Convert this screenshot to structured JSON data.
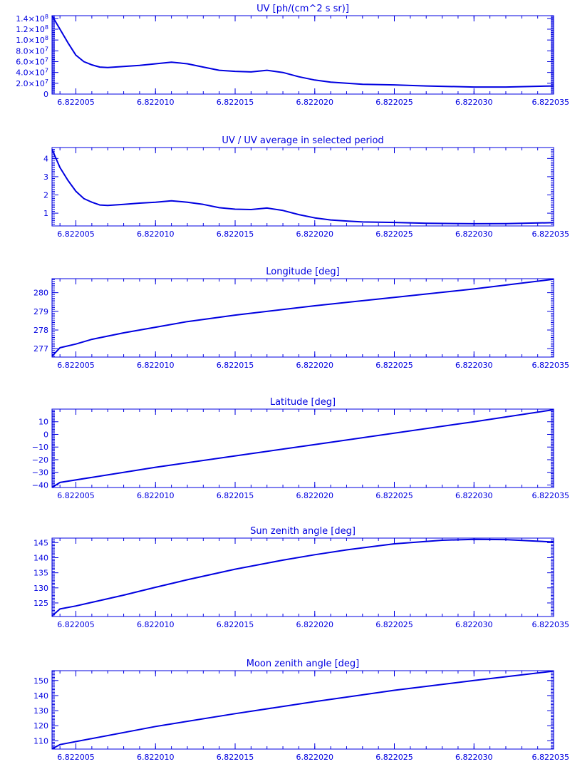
{
  "style": {
    "color": "#0000e0",
    "background": "#ffffff"
  },
  "chart_data": [
    {
      "type": "line",
      "title": "UV [ph/(cm^2 s sr)]",
      "xlim": [
        6.8220035,
        6.822035
      ],
      "ylim": [
        0,
        145000000
      ],
      "x_ticks": [
        "6.822005",
        "6.822010",
        "6.822015",
        "6.822020",
        "6.822025",
        "6.822030",
        "6.822035"
      ],
      "x_tick_values": [
        6.822005,
        6.82201,
        6.822015,
        6.82202,
        6.822025,
        6.82203,
        6.822035
      ],
      "y_ticks": [
        {
          "value": 0,
          "mantissa": "0",
          "exp": ""
        },
        {
          "value": 20000000,
          "mantissa": "2.0×10",
          "exp": "7"
        },
        {
          "value": 40000000,
          "mantissa": "4.0×10",
          "exp": "7"
        },
        {
          "value": 60000000,
          "mantissa": "6.0×10",
          "exp": "7"
        },
        {
          "value": 80000000,
          "mantissa": "8.0×10",
          "exp": "7"
        },
        {
          "value": 100000000,
          "mantissa": "1.0×10",
          "exp": "8"
        },
        {
          "value": 120000000,
          "mantissa": "1.2×10",
          "exp": "8"
        },
        {
          "value": 140000000,
          "mantissa": "1.4×10",
          "exp": "8"
        }
      ],
      "series": [
        {
          "x": [
            6.8220035,
            6.822004,
            6.8220045,
            6.822005,
            6.8220055,
            6.822006,
            6.8220065,
            6.822007,
            6.822008,
            6.822009,
            6.82201,
            6.822011,
            6.822012,
            6.822013,
            6.822014,
            6.822015,
            6.822016,
            6.822017,
            6.822018,
            6.822019,
            6.82202,
            6.822021,
            6.822022,
            6.822023,
            6.822025,
            6.822027,
            6.82203,
            6.822032,
            6.822035
          ],
          "y": [
            145000000,
            120000000,
            95000000,
            72000000,
            60000000,
            54000000,
            50000000,
            49000000,
            51000000,
            53000000,
            56000000,
            59000000,
            56000000,
            50000000,
            44000000,
            42000000,
            41000000,
            44000000,
            40000000,
            32000000,
            26000000,
            22000000,
            20000000,
            18000000,
            17000000,
            15000000,
            13000000,
            13000000,
            15000000
          ]
        }
      ]
    },
    {
      "type": "line",
      "title": "UV / UV average in selected period",
      "xlim": [
        6.8220035,
        6.822035
      ],
      "ylim": [
        0.3,
        4.6
      ],
      "x_ticks": [
        "6.822005",
        "6.822010",
        "6.822015",
        "6.822020",
        "6.822025",
        "6.822030",
        "6.822035"
      ],
      "x_tick_values": [
        6.822005,
        6.82201,
        6.822015,
        6.82202,
        6.822025,
        6.82203,
        6.822035
      ],
      "y_ticks": [
        {
          "value": 1,
          "mantissa": "1",
          "exp": ""
        },
        {
          "value": 2,
          "mantissa": "2",
          "exp": ""
        },
        {
          "value": 3,
          "mantissa": "3",
          "exp": ""
        },
        {
          "value": 4,
          "mantissa": "4",
          "exp": ""
        }
      ],
      "series": [
        {
          "x": [
            6.8220035,
            6.822004,
            6.8220045,
            6.822005,
            6.8220055,
            6.822006,
            6.8220065,
            6.822007,
            6.822008,
            6.822009,
            6.82201,
            6.822011,
            6.822012,
            6.822013,
            6.822014,
            6.822015,
            6.822016,
            6.822017,
            6.822018,
            6.822019,
            6.82202,
            6.822021,
            6.822022,
            6.822023,
            6.822025,
            6.822027,
            6.82203,
            6.822032,
            6.822035
          ],
          "y": [
            4.5,
            3.5,
            2.8,
            2.2,
            1.8,
            1.6,
            1.45,
            1.42,
            1.48,
            1.55,
            1.6,
            1.68,
            1.6,
            1.48,
            1.3,
            1.22,
            1.2,
            1.28,
            1.15,
            0.92,
            0.74,
            0.63,
            0.57,
            0.52,
            0.49,
            0.45,
            0.42,
            0.43,
            0.48
          ]
        }
      ]
    },
    {
      "type": "line",
      "title": "Longitude [deg]",
      "xlim": [
        6.8220035,
        6.822035
      ],
      "ylim": [
        276.55,
        280.75
      ],
      "x_ticks": [
        "6.822005",
        "6.822010",
        "6.822015",
        "6.822020",
        "6.822025",
        "6.822030",
        "6.822035"
      ],
      "x_tick_values": [
        6.822005,
        6.82201,
        6.822015,
        6.82202,
        6.822025,
        6.82203,
        6.822035
      ],
      "y_ticks": [
        {
          "value": 277,
          "mantissa": "277",
          "exp": ""
        },
        {
          "value": 278,
          "mantissa": "278",
          "exp": ""
        },
        {
          "value": 279,
          "mantissa": "279",
          "exp": ""
        },
        {
          "value": 280,
          "mantissa": "280",
          "exp": ""
        }
      ],
      "series": [
        {
          "x": [
            6.8220035,
            6.822004,
            6.822005,
            6.822006,
            6.822008,
            6.82201,
            6.822012,
            6.822015,
            6.82202,
            6.822025,
            6.82203,
            6.822035
          ],
          "y": [
            276.6,
            277.05,
            277.25,
            277.5,
            277.85,
            278.15,
            278.45,
            278.8,
            279.3,
            279.75,
            280.2,
            280.72
          ]
        }
      ]
    },
    {
      "type": "line",
      "title": "Latitude [deg]",
      "xlim": [
        6.8220035,
        6.822035
      ],
      "ylim": [
        -42,
        20
      ],
      "x_ticks": [
        "6.822005",
        "6.822010",
        "6.822015",
        "6.822020",
        "6.822025",
        "6.822030",
        "6.822035"
      ],
      "x_tick_values": [
        6.822005,
        6.82201,
        6.822015,
        6.82202,
        6.822025,
        6.82203,
        6.822035
      ],
      "y_ticks": [
        {
          "value": -40,
          "mantissa": "−40",
          "exp": ""
        },
        {
          "value": -30,
          "mantissa": "−30",
          "exp": ""
        },
        {
          "value": -20,
          "mantissa": "−20",
          "exp": ""
        },
        {
          "value": -10,
          "mantissa": "−10",
          "exp": ""
        },
        {
          "value": 0,
          "mantissa": "0",
          "exp": ""
        },
        {
          "value": 10,
          "mantissa": "10",
          "exp": ""
        }
      ],
      "series": [
        {
          "x": [
            6.8220035,
            6.822004,
            6.82201,
            6.82202,
            6.82203,
            6.822035
          ],
          "y": [
            -42,
            -38,
            -26,
            -8,
            10,
            19.5
          ]
        }
      ]
    },
    {
      "type": "line",
      "title": "Sun zenith angle [deg]",
      "xlim": [
        6.8220035,
        6.822035
      ],
      "ylim": [
        120.5,
        146.5
      ],
      "x_ticks": [
        "6.822005",
        "6.822010",
        "6.822015",
        "6.822020",
        "6.822025",
        "6.822030",
        "6.822035"
      ],
      "x_tick_values": [
        6.822005,
        6.82201,
        6.822015,
        6.82202,
        6.822025,
        6.82203,
        6.822035
      ],
      "y_ticks": [
        {
          "value": 125,
          "mantissa": "125",
          "exp": ""
        },
        {
          "value": 130,
          "mantissa": "130",
          "exp": ""
        },
        {
          "value": 135,
          "mantissa": "135",
          "exp": ""
        },
        {
          "value": 140,
          "mantissa": "140",
          "exp": ""
        },
        {
          "value": 145,
          "mantissa": "145",
          "exp": ""
        }
      ],
      "series": [
        {
          "x": [
            6.8220035,
            6.822004,
            6.822005,
            6.822006,
            6.822008,
            6.82201,
            6.822012,
            6.822015,
            6.822018,
            6.82202,
            6.822022,
            6.822025,
            6.822028,
            6.82203,
            6.822032,
            6.822035
          ],
          "y": [
            120.7,
            123,
            124,
            125.2,
            127.6,
            130.2,
            132.7,
            136.2,
            139.2,
            141,
            142.6,
            144.6,
            145.8,
            146.1,
            146,
            145.2
          ]
        }
      ]
    },
    {
      "type": "line",
      "title": "Moon zenith angle [deg]",
      "xlim": [
        6.8220035,
        6.822035
      ],
      "ylim": [
        104.5,
        156.5
      ],
      "x_ticks": [
        "6.822005",
        "6.822010",
        "6.822015",
        "6.822020",
        "6.822025",
        "6.822030",
        "6.822035"
      ],
      "x_tick_values": [
        6.822005,
        6.82201,
        6.822015,
        6.82202,
        6.822025,
        6.82203,
        6.822035
      ],
      "y_ticks": [
        {
          "value": 110,
          "mantissa": "110",
          "exp": ""
        },
        {
          "value": 120,
          "mantissa": "120",
          "exp": ""
        },
        {
          "value": 130,
          "mantissa": "130",
          "exp": ""
        },
        {
          "value": 140,
          "mantissa": "140",
          "exp": ""
        },
        {
          "value": 150,
          "mantissa": "150",
          "exp": ""
        }
      ],
      "series": [
        {
          "x": [
            6.8220035,
            6.822004,
            6.82201,
            6.822015,
            6.82202,
            6.822025,
            6.82203,
            6.822035
          ],
          "y": [
            104.7,
            107.5,
            119.5,
            128,
            136,
            143.5,
            150,
            156.2
          ]
        }
      ]
    }
  ]
}
